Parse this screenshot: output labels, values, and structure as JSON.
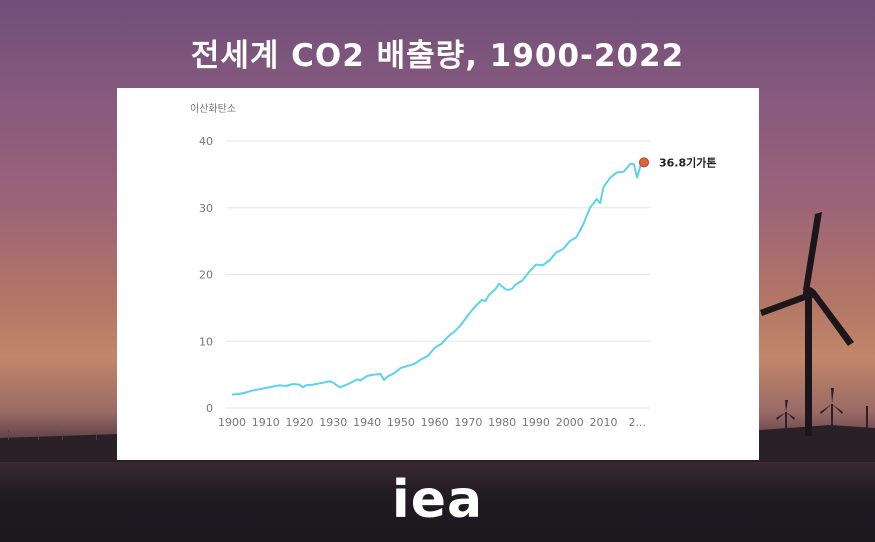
{
  "title": "전세계 CO2 배출량, 1900-2022",
  "logo": "iea",
  "colors": {
    "line": "#5ad2f0",
    "marker": "#e3623b",
    "grid": "#e6e6e6"
  },
  "chart_data": {
    "type": "line",
    "ylabel": "이산화탄소",
    "ylim": [
      0,
      40
    ],
    "yticks": [
      0,
      10,
      20,
      30,
      40
    ],
    "xlim": [
      1900,
      2022
    ],
    "xticks": [
      "1900",
      "1910",
      "1920",
      "1930",
      "1940",
      "1950",
      "1960",
      "1970",
      "1980",
      "1990",
      "2000",
      "2010",
      "2..."
    ],
    "grid": true,
    "end_label": "36.8기가톤",
    "series": [
      {
        "x": [
          1900,
          1902,
          1904,
          1906,
          1908,
          1910,
          1912,
          1914,
          1916,
          1918,
          1920,
          1921,
          1922,
          1924,
          1926,
          1928,
          1929,
          1930,
          1931,
          1932,
          1934,
          1936,
          1937,
          1938,
          1940,
          1942,
          1944,
          1945,
          1946,
          1948,
          1950,
          1952,
          1954,
          1956,
          1958,
          1960,
          1962,
          1964,
          1966,
          1968,
          1970,
          1972,
          1974,
          1975,
          1976,
          1978,
          1979,
          1980,
          1981,
          1982,
          1983,
          1984,
          1986,
          1988,
          1990,
          1992,
          1994,
          1996,
          1998,
          2000,
          2002,
          2004,
          2006,
          2008,
          2009,
          2010,
          2012,
          2014,
          2016,
          2018,
          2019,
          2020,
          2021,
          2022
        ],
        "values": [
          2.0,
          2.1,
          2.3,
          2.6,
          2.8,
          3.0,
          3.2,
          3.4,
          3.3,
          3.6,
          3.5,
          3.1,
          3.4,
          3.5,
          3.7,
          3.9,
          4.0,
          3.8,
          3.4,
          3.1,
          3.5,
          4.0,
          4.3,
          4.1,
          4.8,
          5.0,
          5.1,
          4.2,
          4.7,
          5.2,
          6.0,
          6.3,
          6.6,
          7.3,
          7.8,
          9.0,
          9.6,
          10.7,
          11.5,
          12.6,
          14.0,
          15.2,
          16.2,
          16.0,
          16.9,
          17.8,
          18.6,
          18.2,
          17.8,
          17.7,
          17.9,
          18.5,
          19.1,
          20.4,
          21.5,
          21.4,
          22.1,
          23.3,
          23.8,
          25.0,
          25.6,
          27.5,
          30.0,
          31.3,
          30.7,
          33.1,
          34.5,
          35.3,
          35.4,
          36.6,
          36.5,
          34.5,
          36.4,
          36.8
        ]
      }
    ]
  }
}
